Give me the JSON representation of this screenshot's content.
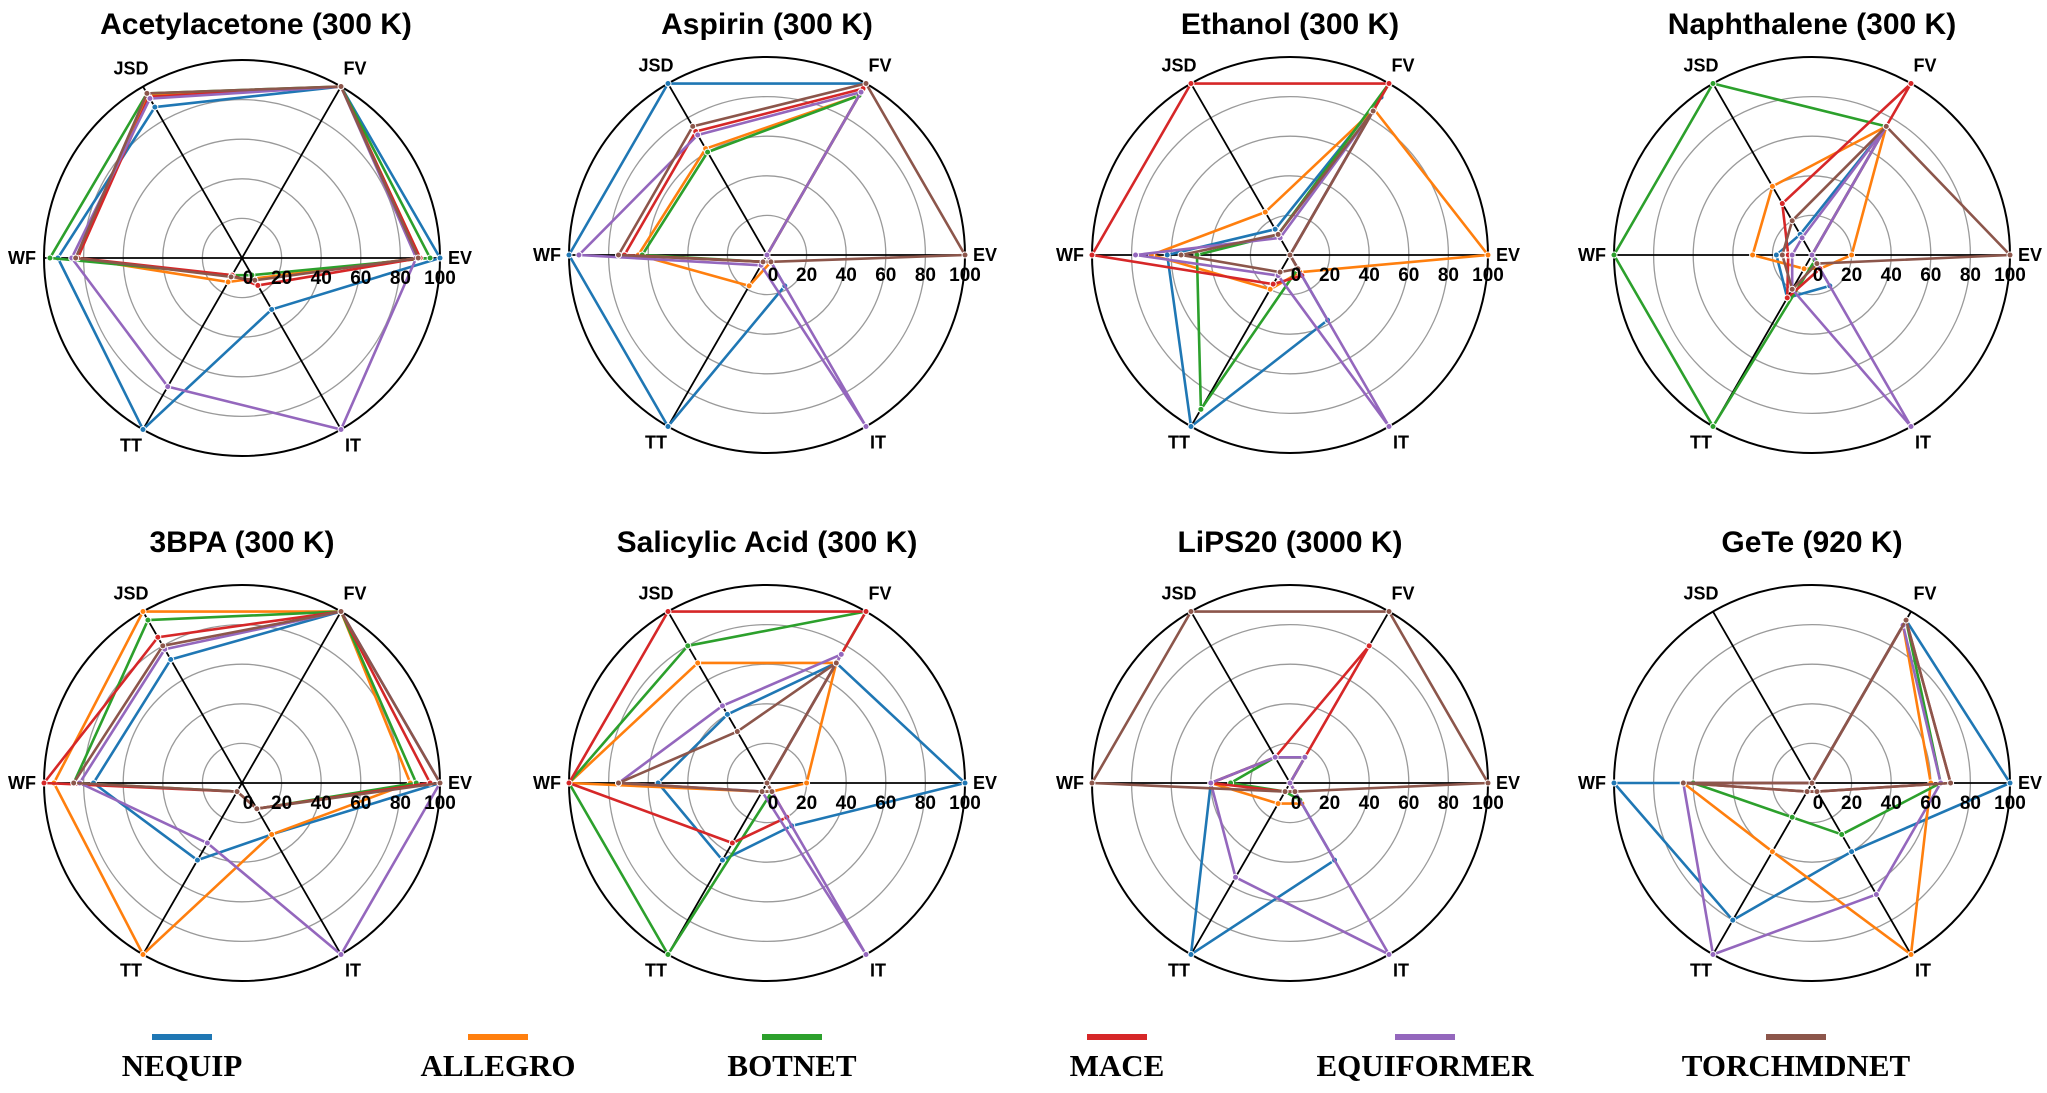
{
  "colors": {
    "NEQUIP": "#1f77b4",
    "ALLEGRO": "#ff7f0e",
    "BOTNET": "#2ca02c",
    "MACE": "#d62728",
    "EQUIFORMER": "#9467bd",
    "TORCHMDNET": "#8c564b"
  },
  "legend": [
    "NEQUIP",
    "ALLEGRO",
    "BOTNET",
    "MACE",
    "EQUIFORMER",
    "TORCHMDNET"
  ],
  "chart_data": [
    {
      "type": "radar",
      "title": "Acetylacetone (300 K)",
      "axes": [
        "FV",
        "JSD",
        "WF",
        "TT",
        "IT",
        "EV"
      ],
      "rlim": [
        0,
        100
      ],
      "rticks": [
        "0",
        "20",
        "40",
        "60",
        "80",
        "100"
      ],
      "series": [
        {
          "name": "NEQUIP",
          "values": [
            100,
            88,
            93,
            100,
            30,
            100
          ]
        },
        {
          "name": "ALLEGRO",
          "values": [
            100,
            95,
            83,
            14,
            12,
            90
          ]
        },
        {
          "name": "BOTNET",
          "values": [
            100,
            96,
            97,
            10,
            10,
            95
          ]
        },
        {
          "name": "MACE",
          "values": [
            100,
            94,
            83,
            10,
            16,
            90
          ]
        },
        {
          "name": "EQUIFORMER",
          "values": [
            100,
            93,
            86,
            75,
            100,
            88
          ]
        },
        {
          "name": "TORCHMDNET",
          "values": [
            100,
            96,
            84,
            11,
            13,
            89
          ]
        }
      ]
    },
    {
      "type": "radar",
      "title": "Aspirin (300 K)",
      "axes": [
        "FV",
        "JSD",
        "WF",
        "TT",
        "IT",
        "EV"
      ],
      "rlim": [
        0,
        100
      ],
      "rticks": [
        "0",
        "20",
        "40",
        "60",
        "80",
        "100"
      ],
      "series": [
        {
          "name": "NEQUIP",
          "values": [
            100,
            100,
            100,
            100,
            18,
            0
          ]
        },
        {
          "name": "ALLEGRO",
          "values": [
            93,
            62,
            65,
            18,
            4,
            0
          ]
        },
        {
          "name": "BOTNET",
          "values": [
            93,
            60,
            63,
            4,
            4,
            0
          ]
        },
        {
          "name": "MACE",
          "values": [
            97,
            72,
            72,
            4,
            4,
            0
          ]
        },
        {
          "name": "EQUIFORMER",
          "values": [
            95,
            70,
            95,
            6,
            100,
            0
          ]
        },
        {
          "name": "TORCHMDNET",
          "values": [
            100,
            75,
            75,
            4,
            4,
            100
          ]
        }
      ]
    },
    {
      "type": "radar",
      "title": "Ethanol (300 K)",
      "axes": [
        "FV",
        "JSD",
        "WF",
        "TT",
        "IT",
        "EV"
      ],
      "rlim": [
        0,
        100
      ],
      "rticks": [
        "0",
        "20",
        "40",
        "60",
        "80",
        "100"
      ],
      "series": [
        {
          "name": "NEQUIP",
          "values": [
            92,
            15,
            62,
            100,
            38,
            0
          ]
        },
        {
          "name": "ALLEGRO",
          "values": [
            85,
            25,
            70,
            20,
            10,
            100
          ]
        },
        {
          "name": "BOTNET",
          "values": [
            100,
            12,
            47,
            90,
            8,
            0
          ]
        },
        {
          "name": "MACE",
          "values": [
            100,
            100,
            100,
            17,
            12,
            0
          ]
        },
        {
          "name": "EQUIFORMER",
          "values": [
            83,
            10,
            78,
            12,
            100,
            0
          ]
        },
        {
          "name": "TORCHMDNET",
          "values": [
            84,
            12,
            55,
            10,
            8,
            0
          ]
        }
      ]
    },
    {
      "type": "radar",
      "title": "Naphthalene (300 K)",
      "axes": [
        "FV",
        "JSD",
        "WF",
        "TT",
        "IT",
        "EV"
      ],
      "rlim": [
        0,
        100
      ],
      "rticks": [
        "0",
        "20",
        "40",
        "60",
        "80",
        "100"
      ],
      "series": [
        {
          "name": "NEQUIP",
          "values": [
            75,
            12,
            18,
            25,
            18,
            0
          ]
        },
        {
          "name": "ALLEGRO",
          "values": [
            75,
            40,
            30,
            8,
            8,
            20
          ]
        },
        {
          "name": "BOTNET",
          "values": [
            75,
            100,
            100,
            100,
            3,
            0
          ]
        },
        {
          "name": "MACE",
          "values": [
            100,
            30,
            12,
            25,
            8,
            0
          ]
        },
        {
          "name": "EQUIFORMER",
          "values": [
            75,
            10,
            10,
            20,
            100,
            0
          ]
        },
        {
          "name": "TORCHMDNET",
          "values": [
            75,
            20,
            15,
            20,
            5,
            100
          ]
        }
      ]
    },
    {
      "type": "radar",
      "title": "3BPA (300 K)",
      "axes": [
        "FV",
        "JSD",
        "WF",
        "TT",
        "IT",
        "EV"
      ],
      "rlim": [
        0,
        100
      ],
      "rticks": [
        "0",
        "20",
        "40",
        "60",
        "80",
        "100"
      ],
      "series": [
        {
          "name": "NEQUIP",
          "values": [
            100,
            72,
            75,
            45,
            30,
            100
          ]
        },
        {
          "name": "ALLEGRO",
          "values": [
            100,
            100,
            95,
            100,
            30,
            85
          ]
        },
        {
          "name": "BOTNET",
          "values": [
            100,
            95,
            85,
            5,
            15,
            88
          ]
        },
        {
          "name": "MACE",
          "values": [
            100,
            85,
            100,
            5,
            15,
            95
          ]
        },
        {
          "name": "EQUIFORMER",
          "values": [
            100,
            78,
            82,
            35,
            100,
            100
          ]
        },
        {
          "name": "TORCHMDNET",
          "values": [
            100,
            80,
            85,
            5,
            15,
            100
          ]
        }
      ]
    },
    {
      "type": "radar",
      "title": "Salicylic Acid (300 K)",
      "axes": [
        "FV",
        "JSD",
        "WF",
        "TT",
        "IT",
        "EV"
      ],
      "rlim": [
        0,
        100
      ],
      "rticks": [
        "0",
        "20",
        "40",
        "60",
        "80",
        "100"
      ],
      "series": [
        {
          "name": "NEQUIP",
          "values": [
            70,
            40,
            55,
            45,
            25,
            100
          ]
        },
        {
          "name": "ALLEGRO",
          "values": [
            70,
            70,
            100,
            5,
            5,
            20
          ]
        },
        {
          "name": "BOTNET",
          "values": [
            100,
            80,
            100,
            100,
            5,
            0
          ]
        },
        {
          "name": "MACE",
          "values": [
            100,
            100,
            100,
            35,
            20,
            0
          ]
        },
        {
          "name": "EQUIFORMER",
          "values": [
            75,
            45,
            75,
            5,
            100,
            0
          ]
        },
        {
          "name": "TORCHMDNET",
          "values": [
            70,
            30,
            75,
            5,
            5,
            0
          ]
        }
      ]
    },
    {
      "type": "radar",
      "title": "LiPS20 (3000 K)",
      "axes": [
        "FV",
        "JSD",
        "WF",
        "TT",
        "IT",
        "EV"
      ],
      "rlim": [
        0,
        100
      ],
      "rticks": [
        "0",
        "20",
        "40",
        "60",
        "80",
        "100"
      ],
      "series": [
        {
          "name": "NEQUIP",
          "values": [
            15,
            15,
            40,
            100,
            45,
            0
          ]
        },
        {
          "name": "ALLEGRO",
          "values": [
            15,
            15,
            40,
            12,
            12,
            0
          ]
        },
        {
          "name": "BOTNET",
          "values": [
            15,
            15,
            30,
            5,
            10,
            0
          ]
        },
        {
          "name": "MACE",
          "values": [
            80,
            15,
            40,
            5,
            5,
            0
          ]
        },
        {
          "name": "EQUIFORMER",
          "values": [
            15,
            15,
            40,
            55,
            100,
            0
          ]
        },
        {
          "name": "TORCHMDNET",
          "values": [
            100,
            100,
            100,
            5,
            5,
            100
          ]
        }
      ]
    },
    {
      "type": "radar",
      "title": "GeTe (920 K)",
      "axes": [
        "FV",
        "JSD",
        "WF",
        "TT",
        "IT",
        "EV"
      ],
      "rlim": [
        0,
        100
      ],
      "rticks": [
        "0",
        "20",
        "40",
        "60",
        "80",
        "100"
      ],
      "series": [
        {
          "name": "NEQUIP",
          "values": [
            95,
            0,
            100,
            80,
            40,
            100
          ]
        },
        {
          "name": "ALLEGRO",
          "values": [
            92,
            0,
            65,
            40,
            100,
            60
          ]
        },
        {
          "name": "BOTNET",
          "values": [
            95,
            0,
            60,
            20,
            30,
            65
          ]
        },
        {
          "name": "MACE",
          "values": [
            95,
            0,
            65,
            5,
            5,
            70
          ]
        },
        {
          "name": "EQUIFORMER",
          "values": [
            92,
            0,
            65,
            100,
            65,
            65
          ]
        },
        {
          "name": "TORCHMDNET",
          "values": [
            95,
            0,
            65,
            5,
            5,
            70
          ]
        }
      ]
    }
  ]
}
